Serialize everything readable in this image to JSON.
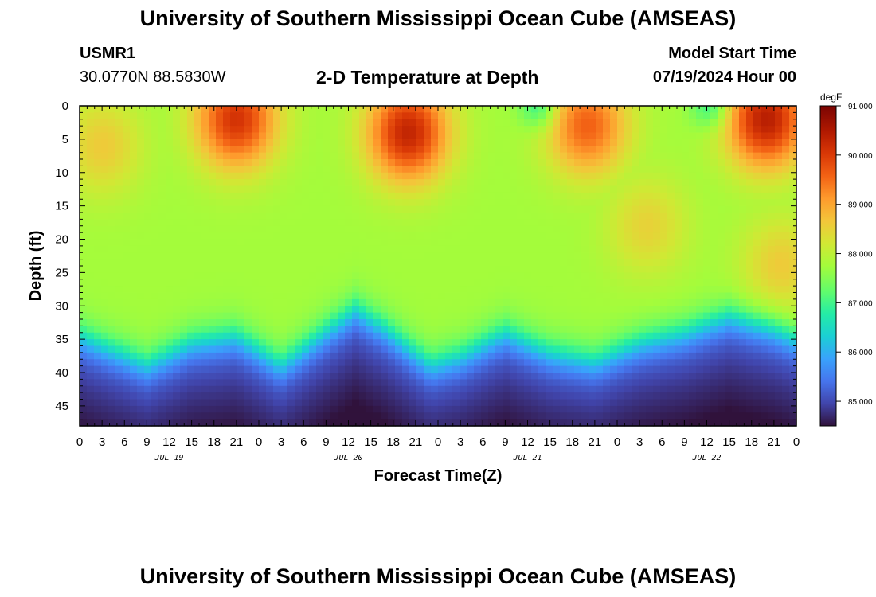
{
  "page": {
    "title": "University of Southern Mississippi Ocean Cube (AMSEAS)",
    "footer_title": "University of Southern Mississippi Ocean Cube (AMSEAS)",
    "station_id": "USMR1",
    "coordinates": "30.0770N  88.5830W",
    "subtitle": "2-D Temperature at Depth",
    "model_start_label": "Model Start Time",
    "model_start_value": "07/19/2024 Hour 00"
  },
  "chart_data": {
    "type": "heatmap",
    "title": "2-D Temperature at Depth",
    "xlabel": "Forecast Time(Z)",
    "ylabel": "Depth (ft)",
    "x_range_hours": [
      0,
      96
    ],
    "y_range_ft": [
      0,
      48
    ],
    "x_tick_labels": [
      "0",
      "3",
      "6",
      "9",
      "12",
      "15",
      "18",
      "21",
      "0",
      "3",
      "6",
      "9",
      "12",
      "15",
      "18",
      "21",
      "0",
      "3",
      "6",
      "9",
      "12",
      "15",
      "18",
      "21",
      "0",
      "3",
      "6",
      "9",
      "12",
      "15",
      "18",
      "21",
      "0"
    ],
    "x_date_labels": [
      "JUL 19",
      "JUL 20",
      "JUL 21",
      "JUL 22"
    ],
    "x_date_label_hours": [
      12,
      36,
      60,
      84
    ],
    "y_ticks": [
      0,
      5,
      10,
      15,
      20,
      25,
      30,
      35,
      40,
      45
    ],
    "colorbar": {
      "unit": "degF",
      "min": 84.5,
      "max": 91.0,
      "tick_values": [
        85,
        86,
        87,
        88,
        89,
        90,
        91
      ],
      "tick_labels": [
        "85.000",
        "86.000",
        "87.000",
        "88.000",
        "89.000",
        "90.000",
        "91.000"
      ],
      "colormap": [
        [
          0.0,
          "#30123b"
        ],
        [
          0.07,
          "#4145ab"
        ],
        [
          0.14,
          "#4675ed"
        ],
        [
          0.21,
          "#39a2fc"
        ],
        [
          0.28,
          "#1bcfd4"
        ],
        [
          0.35,
          "#24eca6"
        ],
        [
          0.42,
          "#61fc6c"
        ],
        [
          0.5,
          "#a4fc3b"
        ],
        [
          0.57,
          "#d1e834"
        ],
        [
          0.64,
          "#f3c63a"
        ],
        [
          0.71,
          "#fe9b2d"
        ],
        [
          0.78,
          "#f36315"
        ],
        [
          0.85,
          "#d93806"
        ],
        [
          0.92,
          "#b11901"
        ],
        [
          1.0,
          "#7a0402"
        ]
      ]
    },
    "thermocline_depth_ft": [
      [
        0,
        34.5
      ],
      [
        9,
        38.8
      ],
      [
        15,
        35.5
      ],
      [
        21,
        34.5
      ],
      [
        27,
        38.8
      ],
      [
        33,
        33.8
      ],
      [
        37,
        30.5
      ],
      [
        41,
        33.5
      ],
      [
        47,
        38.8
      ],
      [
        51,
        37.5
      ],
      [
        57,
        34.0
      ],
      [
        63,
        37.0
      ],
      [
        69,
        38.3
      ],
      [
        75,
        35.5
      ],
      [
        81,
        34.0
      ],
      [
        87,
        31.5
      ],
      [
        93,
        33.5
      ],
      [
        96,
        35.0
      ]
    ],
    "warm_patches": [
      {
        "center_hour": 3,
        "center_depth_ft": 6,
        "peak_degF": 88.6
      },
      {
        "center_hour": 21,
        "center_depth_ft": 2,
        "peak_degF": 90.1
      },
      {
        "center_hour": 44,
        "center_depth_ft": 4,
        "peak_degF": 90.3
      },
      {
        "center_hour": 68,
        "center_depth_ft": 3,
        "peak_degF": 89.6
      },
      {
        "center_hour": 92,
        "center_depth_ft": 2,
        "peak_degF": 90.4
      },
      {
        "center_hour": 76,
        "center_depth_ft": 18,
        "peak_degF": 88.5
      },
      {
        "center_hour": 94,
        "center_depth_ft": 24,
        "peak_degF": 88.6
      }
    ],
    "cool_surface_patches": [
      {
        "center_hour": 61,
        "center_depth_ft": 0,
        "min_degF": 87.1
      },
      {
        "center_hour": 84,
        "center_depth_ft": 0,
        "min_degF": 87.1
      }
    ]
  }
}
